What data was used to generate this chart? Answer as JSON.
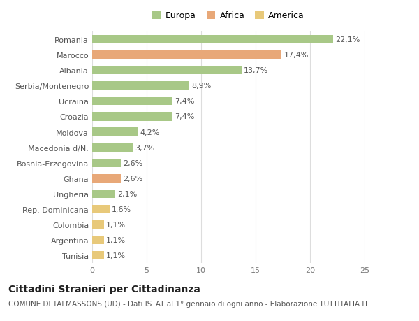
{
  "categories": [
    "Tunisia",
    "Argentina",
    "Colombia",
    "Rep. Dominicana",
    "Ungheria",
    "Ghana",
    "Bosnia-Erzegovina",
    "Macedonia d/N.",
    "Moldova",
    "Croazia",
    "Ucraina",
    "Serbia/Montenegro",
    "Albania",
    "Marocco",
    "Romania"
  ],
  "values": [
    1.1,
    1.1,
    1.1,
    1.6,
    2.1,
    2.6,
    2.6,
    3.7,
    4.2,
    7.4,
    7.4,
    8.9,
    13.7,
    17.4,
    22.1
  ],
  "labels": [
    "1,1%",
    "1,1%",
    "1,1%",
    "1,6%",
    "2,1%",
    "2,6%",
    "2,6%",
    "3,7%",
    "4,2%",
    "7,4%",
    "7,4%",
    "8,9%",
    "13,7%",
    "17,4%",
    "22,1%"
  ],
  "colors": [
    "#e8c97a",
    "#e8c97a",
    "#e8c97a",
    "#e8c97a",
    "#a8c887",
    "#e8a878",
    "#a8c887",
    "#a8c887",
    "#a8c887",
    "#a8c887",
    "#a8c887",
    "#a8c887",
    "#a8c887",
    "#e8a878",
    "#a8c887"
  ],
  "legend": [
    {
      "label": "Europa",
      "color": "#a8c887"
    },
    {
      "label": "Africa",
      "color": "#e8a878"
    },
    {
      "label": "America",
      "color": "#e8c97a"
    }
  ],
  "title": "Cittadini Stranieri per Cittadinanza",
  "subtitle": "COMUNE DI TALMASSONS (UD) - Dati ISTAT al 1° gennaio di ogni anno - Elaborazione TUTTITALIA.IT",
  "xlim": [
    0,
    25
  ],
  "xticks": [
    0,
    5,
    10,
    15,
    20,
    25
  ],
  "background_color": "#ffffff",
  "grid_color": "#dddddd",
  "bar_height": 0.55,
  "title_fontsize": 10,
  "subtitle_fontsize": 7.5,
  "label_fontsize": 8,
  "tick_fontsize": 8,
  "legend_fontsize": 9
}
